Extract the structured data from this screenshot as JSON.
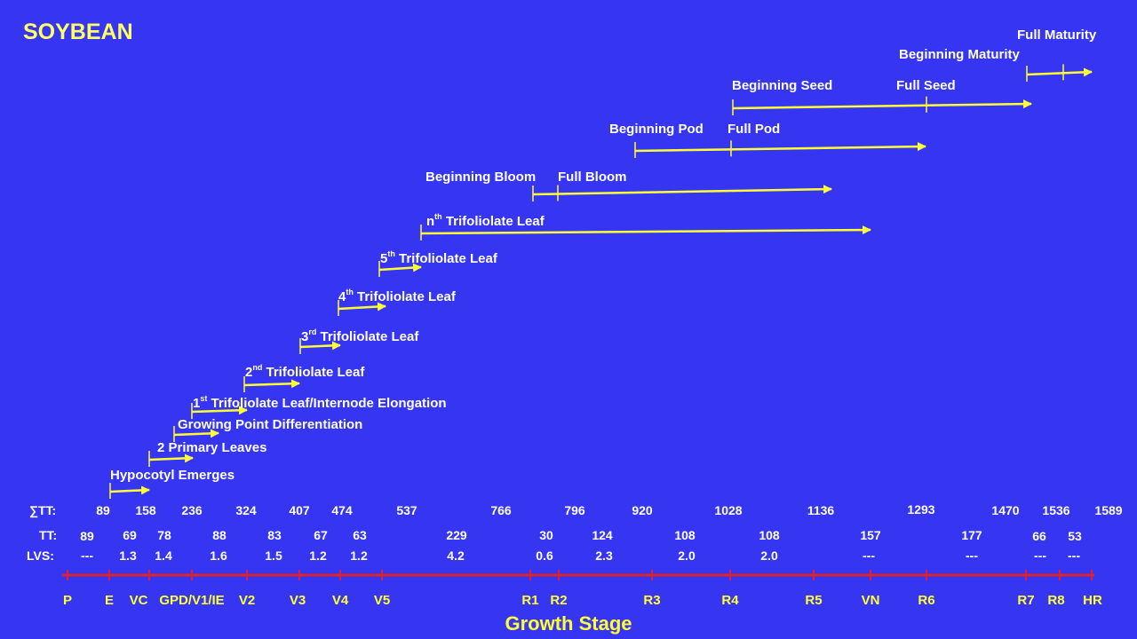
{
  "title": "SOYBEAN",
  "arrows": [
    {
      "label": "Hypocotyl Emerges"
    },
    {
      "label": "2 Primary Leaves"
    },
    {
      "label": "Growing Point Differentiation"
    },
    {
      "label_sup": "st",
      "label_num": "1",
      "label_rest": " Trifoliolate Leaf/Internode Elongation"
    },
    {
      "label_sup": "nd",
      "label_num": "2",
      "label_rest": " Trifoliolate  Leaf"
    },
    {
      "label_sup": "rd",
      "label_num": "3",
      "label_rest": " Trifoliolate  Leaf"
    },
    {
      "label_sup": "th",
      "label_num": "4",
      "label_rest": " Trifoliolate  Leaf"
    },
    {
      "label_sup": "th",
      "label_num": "5",
      "label_rest": " Trifoliolate  Leaf"
    },
    {
      "label_sup": "th",
      "label_num": "n",
      "label_rest": " Trifoliolate  Leaf"
    },
    {
      "label": "Beginning Bloom",
      "label2": "Full Bloom"
    },
    {
      "label": "Beginning Pod",
      "label2": "Full Pod"
    },
    {
      "label": "Beginning Seed",
      "label2": "Full Seed"
    },
    {
      "label": "Beginning Maturity",
      "label2": "Full Maturity"
    }
  ],
  "rows": {
    "sum_tt_label": "∑TT:",
    "tt_label": "TT:",
    "lvs_label": "LVS:",
    "sum_tt": [
      "89",
      "158",
      "236",
      "324",
      "407",
      "474",
      "537",
      "766",
      "796",
      "920",
      "1028",
      "1136",
      "1293",
      "1470",
      "1536",
      "1589"
    ],
    "tt": [
      "89",
      "69",
      "78",
      "88",
      "83",
      "67",
      "63",
      "229",
      "30",
      "124",
      "108",
      "108",
      "157",
      "177",
      "66",
      "53"
    ],
    "lvs": [
      "---",
      "1.3",
      "1.4",
      "1.6",
      "1.5",
      "1.2",
      "1.2",
      "4.2",
      "0.6",
      "2.3",
      "2.0",
      "2.0",
      "---",
      "---",
      "---",
      "---"
    ]
  },
  "stages": [
    "P",
    "E",
    "VC",
    "GPD/V1/IE",
    "V2",
    "V3",
    "V4",
    "V5",
    "R1",
    "R2",
    "R3",
    "R4",
    "R5",
    "VN",
    "R6",
    "R7",
    "R8",
    "HR"
  ],
  "axis_title": "Growth Stage",
  "colors": {
    "background": "#3636f2",
    "arrow": "#ffff33",
    "axis": "#e0202a",
    "text": "#ffffff",
    "stage_text": "#ffff33"
  }
}
